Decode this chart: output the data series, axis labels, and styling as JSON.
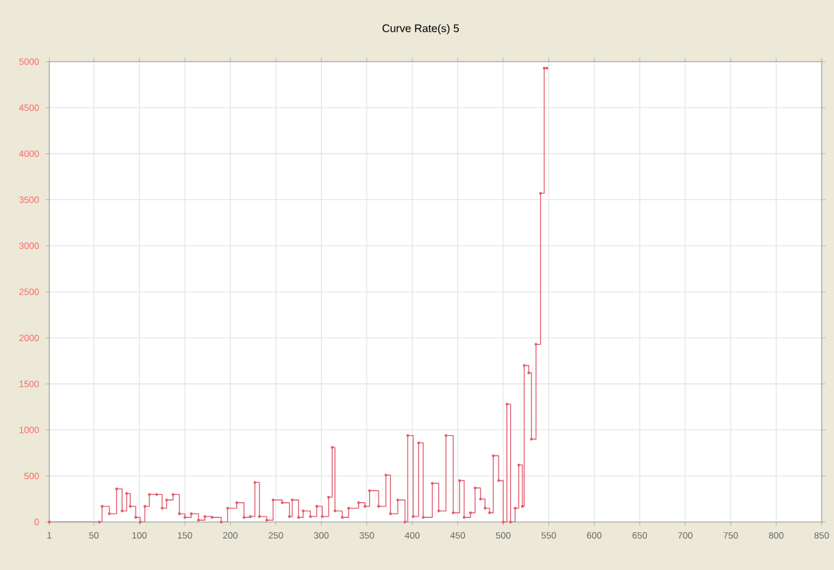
{
  "chart_data": {
    "type": "step",
    "title": "Curve Rate(s) 5",
    "xlim": [
      1,
      850
    ],
    "ylim": [
      0,
      5000
    ],
    "xticks": [
      1,
      50,
      100,
      150,
      200,
      250,
      300,
      350,
      400,
      450,
      500,
      550,
      600,
      650,
      700,
      750,
      800,
      850
    ],
    "yticks": [
      0,
      500,
      1000,
      1500,
      2000,
      2500,
      3000,
      3500,
      4000,
      4500,
      5000
    ],
    "grid": true,
    "marker": "circle",
    "series": [
      {
        "color": "#e05a6a",
        "x": [
          1,
          56,
          59,
          67,
          75,
          81,
          86,
          90,
          96,
          101,
          106,
          111,
          119,
          125,
          130,
          137,
          144,
          150,
          157,
          165,
          172,
          180,
          190,
          197,
          207,
          215,
          222,
          227,
          232,
          240,
          247,
          257,
          265,
          268,
          275,
          280,
          288,
          295,
          301,
          308,
          312,
          315,
          323,
          330,
          341,
          348,
          353,
          363,
          371,
          376,
          384,
          392,
          395,
          401,
          407,
          412,
          422,
          429,
          437,
          445,
          452,
          457,
          464,
          469,
          475,
          480,
          485,
          489,
          495,
          500,
          504,
          508,
          513,
          517,
          521,
          523,
          528,
          531,
          536,
          541,
          545,
          548
        ],
        "values": [
          0,
          0,
          170,
          90,
          360,
          120,
          310,
          170,
          50,
          0,
          170,
          300,
          300,
          150,
          240,
          300,
          90,
          50,
          90,
          20,
          60,
          50,
          0,
          150,
          210,
          50,
          60,
          430,
          60,
          20,
          240,
          210,
          60,
          240,
          50,
          120,
          60,
          170,
          60,
          270,
          810,
          120,
          50,
          150,
          210,
          170,
          340,
          170,
          510,
          90,
          240,
          0,
          940,
          60,
          860,
          50,
          420,
          120,
          940,
          100,
          450,
          50,
          100,
          370,
          250,
          150,
          100,
          720,
          450,
          0,
          1280,
          0,
          150,
          620,
          170,
          1700,
          1620,
          900,
          1930,
          3570,
          4930,
          4930
        ]
      }
    ]
  }
}
